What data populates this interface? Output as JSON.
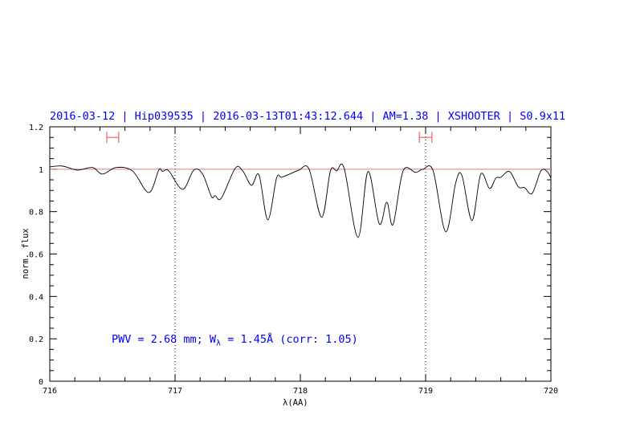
{
  "chart_data": {
    "type": "line",
    "title": "2016-03-12 | Hip039535 | 2016-03-13T01:43:12.644 | AM=1.38 | XSHOOTER | S0.9x11",
    "xlabel": "λ(AA)",
    "ylabel": "norm. flux",
    "xlim": [
      716,
      720
    ],
    "ylim": [
      0,
      1.2
    ],
    "x_ticks": [
      "716",
      "717",
      "718",
      "719",
      "720"
    ],
    "y_ticks": [
      "0",
      "0.2",
      "0.4",
      "0.6",
      "0.8",
      "1",
      "1.2"
    ],
    "grid": false,
    "annotation": {
      "pwv": "PWV = 2.68 mm; W",
      "sub": "λ",
      "rest": " = 1.45Å (corr: 1.05)"
    },
    "reference_line": {
      "y": 1.0,
      "color": "#e87878"
    },
    "vertical_markers": [
      717,
      719
    ],
    "error_bars": [
      {
        "x0": 716.455,
        "x1": 716.55,
        "y": 1.15
      },
      {
        "x0": 718.95,
        "x1": 719.05,
        "y": 1.15
      }
    ],
    "colors": {
      "title": "#0000ff",
      "spectrum": "#000000",
      "error_bars": "#f07070"
    },
    "series": [
      {
        "x": [
          716.0,
          716.1,
          716.22,
          716.34,
          716.42,
          716.53,
          716.66,
          716.79,
          716.87,
          716.9,
          716.95,
          717.06,
          717.15,
          717.22,
          717.29,
          717.32,
          717.37,
          717.48,
          717.54,
          717.61,
          717.67,
          717.74,
          717.81,
          717.85,
          717.93,
          717.99,
          718.07,
          718.17,
          718.24,
          718.29,
          718.35,
          718.46,
          718.54,
          718.63,
          718.69,
          718.74,
          718.82,
          718.92,
          718.98,
          719.06,
          719.16,
          719.24,
          719.29,
          719.37,
          719.44,
          719.51,
          719.56,
          719.6,
          719.67,
          719.74,
          719.79,
          719.85,
          719.92,
          719.97,
          720.0
        ],
        "y": [
          1.011,
          1.015,
          0.996,
          1.008,
          0.977,
          1.008,
          0.992,
          0.89,
          0.996,
          0.99,
          0.992,
          0.905,
          0.996,
          0.977,
          0.871,
          0.875,
          0.864,
          1.004,
          0.992,
          0.924,
          0.973,
          0.761,
          0.958,
          0.962,
          0.981,
          0.996,
          1.0,
          0.773,
          0.992,
          0.992,
          1.004,
          0.678,
          0.989,
          0.742,
          0.845,
          0.739,
          0.992,
          0.985,
          1.0,
          0.992,
          0.705,
          0.936,
          0.97,
          0.758,
          0.977,
          0.909,
          0.958,
          0.962,
          0.989,
          0.917,
          0.913,
          0.886,
          0.992,
          0.989,
          0.958
        ]
      }
    ]
  }
}
